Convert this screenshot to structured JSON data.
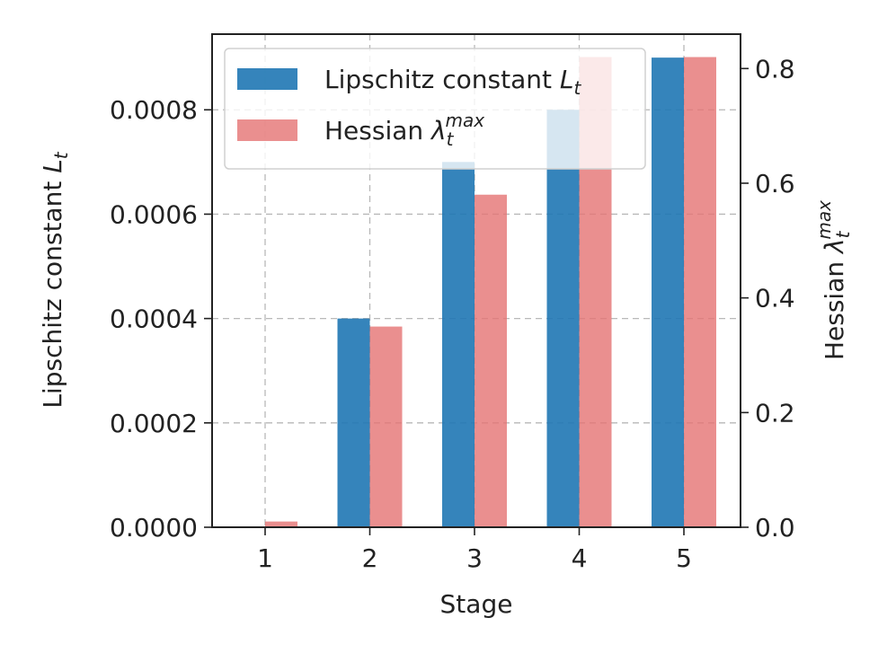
{
  "chart_data": {
    "type": "bar",
    "categories": [
      "1",
      "2",
      "3",
      "4",
      "5"
    ],
    "xlabel": "Stage",
    "ylabel_left": "Lipschitz constant L_t",
    "ylabel_right": "Hessian λ_t^max",
    "ylim_left": [
      0,
      0.000945
    ],
    "ylim_right": [
      0,
      0.86
    ],
    "yticks_left": [
      "0.0000",
      "0.0002",
      "0.0004",
      "0.0006",
      "0.0008"
    ],
    "yticks_left_values": [
      0,
      0.0002,
      0.0004,
      0.0006,
      0.0008
    ],
    "yticks_right": [
      "0.0",
      "0.2",
      "0.4",
      "0.6",
      "0.8"
    ],
    "yticks_right_values": [
      0,
      0.2,
      0.4,
      0.6,
      0.8
    ],
    "grid": true,
    "series": [
      {
        "name": "Lipschitz constant L_t",
        "axis": "left",
        "color": "#1f77b4",
        "values": [
          0,
          0.0004,
          0.0007,
          0.0008,
          0.0009
        ]
      },
      {
        "name": "Hessian λ_t^max",
        "axis": "right",
        "color": "#e57373",
        "values": [
          0.01,
          0.35,
          0.58,
          0.82,
          0.82
        ]
      }
    ],
    "legend": {
      "placement": "top-left",
      "entries": [
        {
          "base": "Lipschitz constant ",
          "var": "L",
          "sub": "t",
          "sup": ""
        },
        {
          "base": "Hessian ",
          "var": "λ",
          "sub": "t",
          "sup": "max"
        }
      ]
    }
  }
}
